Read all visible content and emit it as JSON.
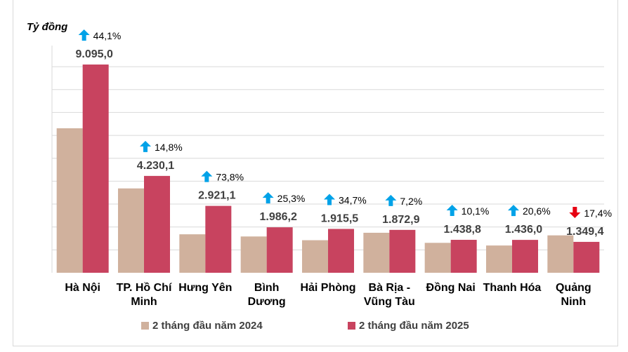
{
  "unit_label": "Tỷ đồng",
  "chart_data": {
    "type": "bar",
    "ylabel": "Tỷ đồng",
    "ylim": [
      0,
      9800
    ],
    "grid": true,
    "categories": [
      [
        "Hà Nội"
      ],
      [
        "TP. Hồ Chí",
        "Minh"
      ],
      [
        "Hưng Yên"
      ],
      [
        "Bình",
        "Dương"
      ],
      [
        "Hải Phòng"
      ],
      [
        "Bà Rịa -",
        "Vũng Tàu"
      ],
      [
        "Đồng Nai"
      ],
      [
        "Thanh Hóa"
      ],
      [
        "Quảng",
        "Ninh"
      ]
    ],
    "series": [
      {
        "name": "2 tháng đầu năm 2024",
        "color": "#d0b19d",
        "values": [
          6312,
          3684,
          1680,
          1585,
          1422,
          1747,
          1307,
          1191,
          1634
        ]
      },
      {
        "name": "2 tháng đầu năm 2025",
        "color": "#c8435f",
        "values": [
          9095.0,
          4230.1,
          2921.1,
          1986.2,
          1915.5,
          1872.9,
          1438.8,
          1436.0,
          1349.4
        ]
      }
    ],
    "value_labels": [
      "9.095,0",
      "4.230,1",
      "2.921,1",
      "1.986,2",
      "1.915,5",
      "1.872,9",
      "1.438,8",
      "1.436,0",
      "1.349,4"
    ],
    "changes": [
      {
        "text": "44,1%",
        "direction": "up"
      },
      {
        "text": "14,8%",
        "direction": "up"
      },
      {
        "text": "73,8%",
        "direction": "up"
      },
      {
        "text": "25,3%",
        "direction": "up"
      },
      {
        "text": "34,7%",
        "direction": "up"
      },
      {
        "text": "7,2%",
        "direction": "up"
      },
      {
        "text": "10,1%",
        "direction": "up"
      },
      {
        "text": "20,6%",
        "direction": "up"
      },
      {
        "text": "17,4%",
        "direction": "down"
      }
    ],
    "arrow_colors": {
      "up": "#00a2e8",
      "down": "#e60012"
    }
  }
}
